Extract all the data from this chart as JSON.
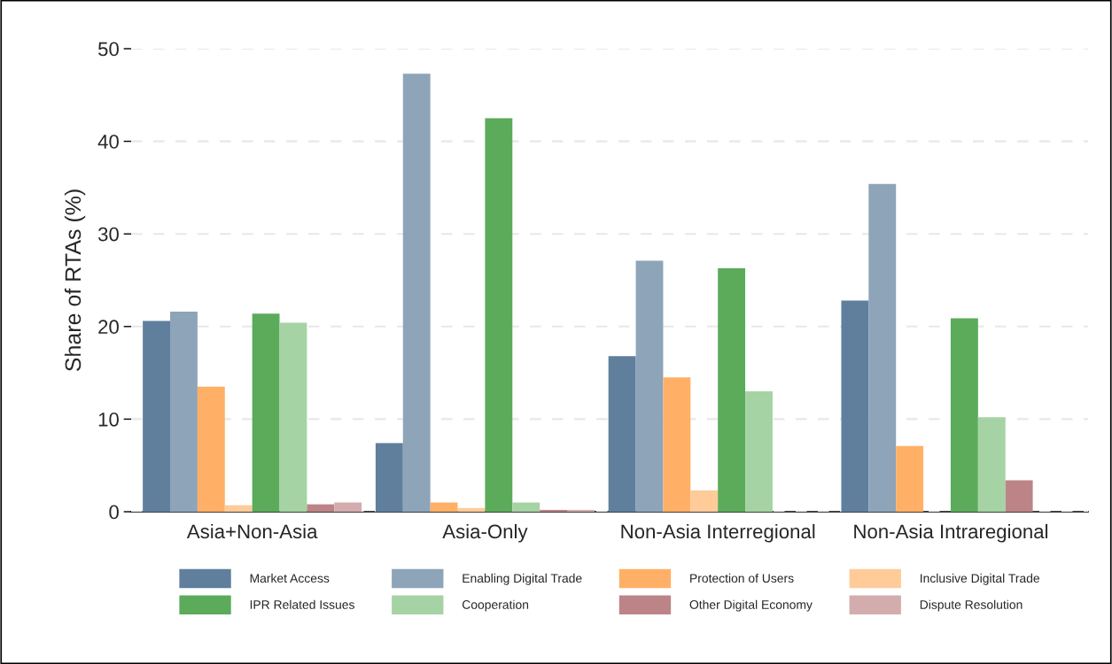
{
  "chart_data": {
    "type": "bar",
    "ylabel": "Share of RTAs (%)",
    "categories": [
      "Asia+Non-Asia",
      "Asia-Only",
      "Non-Asia Interregional",
      "Non-Asia Intraregional"
    ],
    "series": [
      {
        "name": "Market Access",
        "color": "#5f7f9c",
        "values": [
          20.6,
          7.4,
          16.8,
          22.8
        ]
      },
      {
        "name": "Enabling Digital Trade",
        "color": "#8da4b9",
        "values": [
          21.6,
          47.3,
          27.1,
          35.4
        ]
      },
      {
        "name": "Protection of Users",
        "color": "#ffb066",
        "values": [
          13.5,
          1.0,
          14.5,
          7.1
        ]
      },
      {
        "name": "Inclusive Digital Trade",
        "color": "#ffcb99",
        "values": [
          0.7,
          0.4,
          2.3,
          0
        ]
      },
      {
        "name": "IPR Related Issues",
        "color": "#5bab5b",
        "values": [
          21.4,
          42.5,
          26.3,
          20.9
        ]
      },
      {
        "name": "Cooperation",
        "color": "#a6d3a4",
        "values": [
          20.4,
          1.0,
          13.0,
          10.2
        ]
      },
      {
        "name": "Other Digital Economy",
        "color": "#bd8487",
        "values": [
          0.8,
          0.2,
          0,
          3.4
        ]
      },
      {
        "name": "Dispute Resolution",
        "color": "#d3adae",
        "values": [
          1.0,
          0.2,
          0,
          0
        ]
      }
    ],
    "ylim": [
      0,
      50
    ],
    "yticks": [
      0,
      10,
      20,
      30,
      40,
      50
    ],
    "grid": "y",
    "legend": "bottom"
  }
}
